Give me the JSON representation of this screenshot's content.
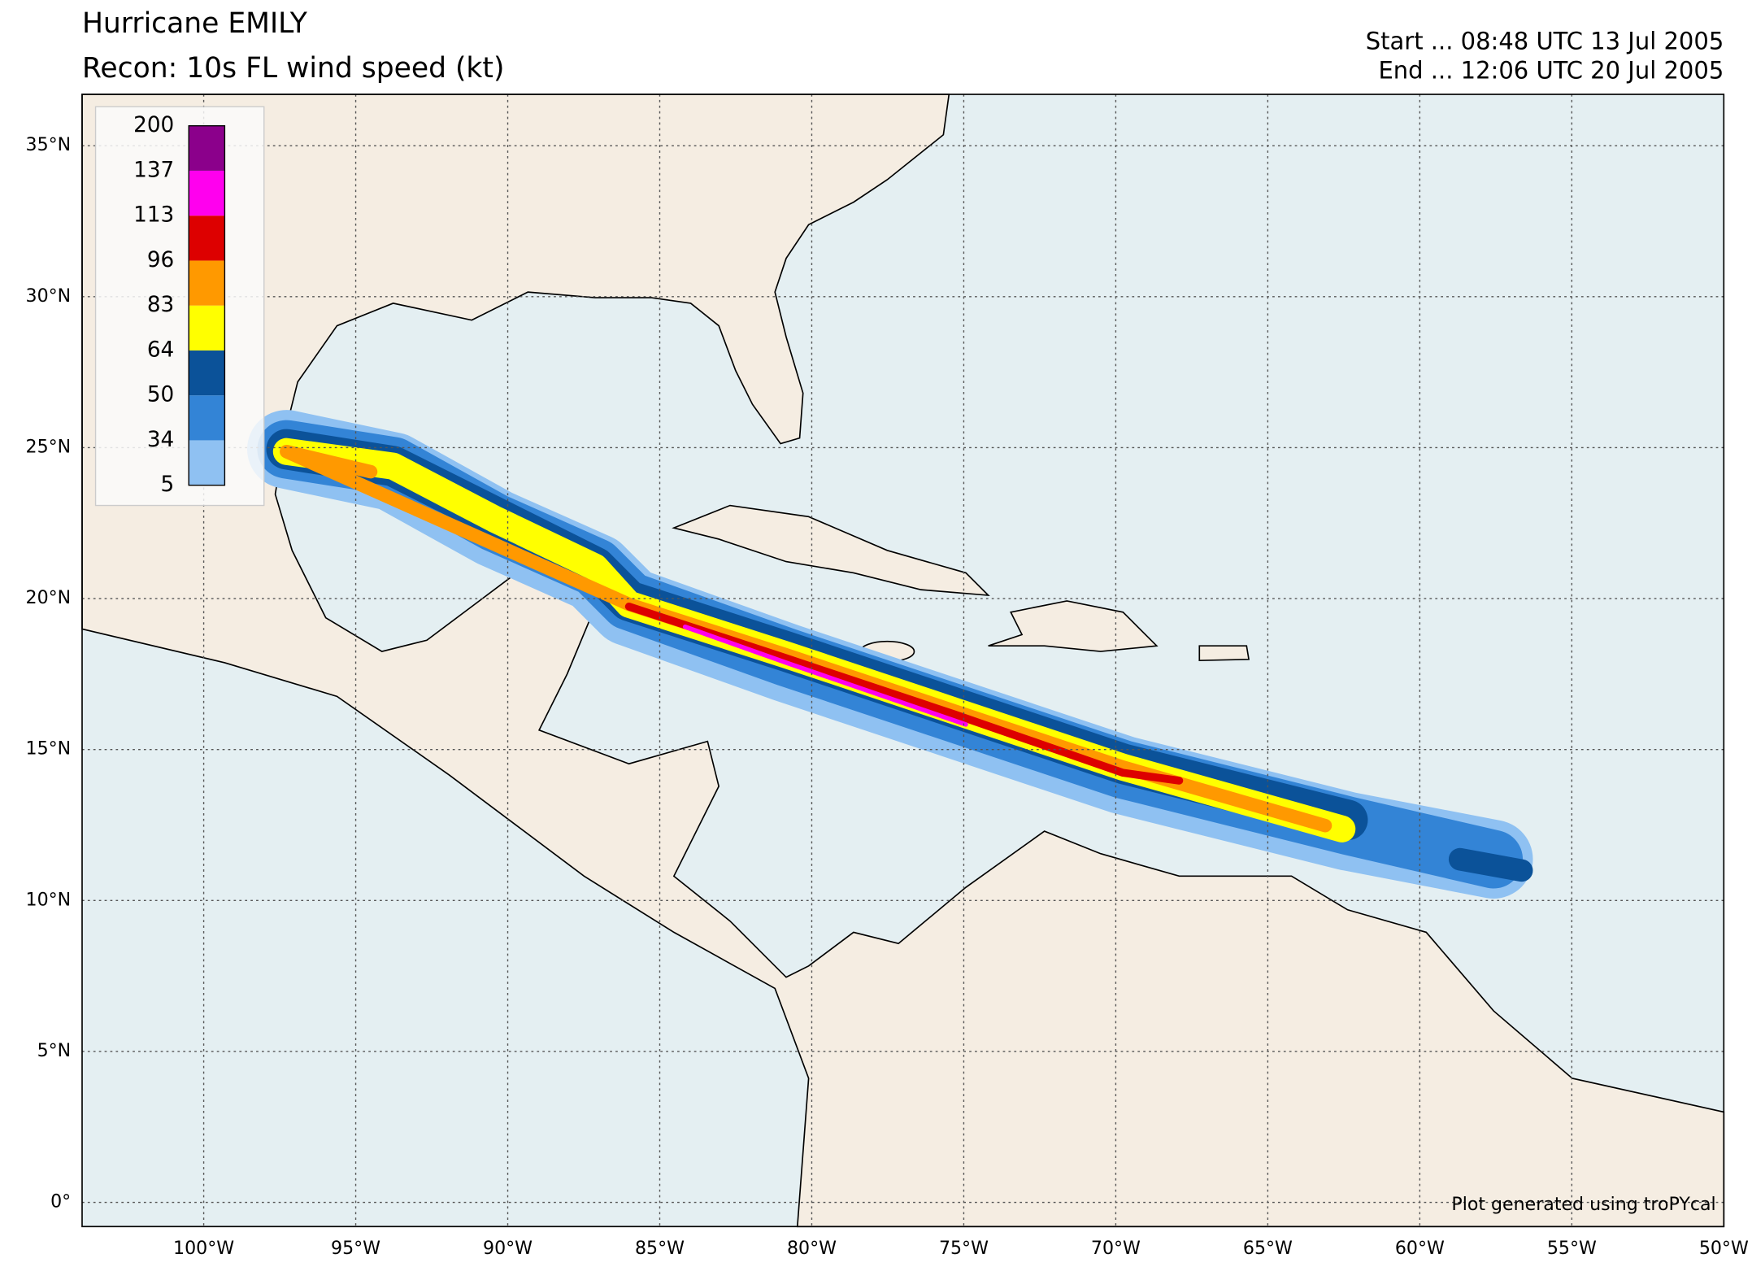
{
  "map": {
    "title": "Hurricane EMILY",
    "subtitle": "Recon: 10s FL wind speed (kt)",
    "start": "Start ... 08:48 UTC 13 Jul 2005",
    "end": "End ... 12:06 UTC 20 Jul 2005",
    "credit": "Plot generated using troPYcal",
    "xlim": [
      -104,
      -50
    ],
    "ylim": [
      -0.8,
      36.7
    ],
    "xticks": [
      {
        "value": -100,
        "label": "100°W"
      },
      {
        "value": -95,
        "label": "95°W"
      },
      {
        "value": -90,
        "label": "90°W"
      },
      {
        "value": -85,
        "label": "85°W"
      },
      {
        "value": -80,
        "label": "80°W"
      },
      {
        "value": -75,
        "label": "75°W"
      },
      {
        "value": -70,
        "label": "70°W"
      },
      {
        "value": -65,
        "label": "65°W"
      },
      {
        "value": -60,
        "label": "60°W"
      },
      {
        "value": -55,
        "label": "55°W"
      },
      {
        "value": -50,
        "label": "50°W"
      }
    ],
    "yticks": [
      {
        "value": 0,
        "label": "0°"
      },
      {
        "value": 5,
        "label": "5°N"
      },
      {
        "value": 10,
        "label": "10°N"
      },
      {
        "value": 15,
        "label": "15°N"
      },
      {
        "value": 20,
        "label": "20°N"
      },
      {
        "value": 25,
        "label": "25°N"
      },
      {
        "value": 30,
        "label": "30°N"
      },
      {
        "value": 35,
        "label": "35°N"
      }
    ],
    "colorbar": {
      "levels": [
        5,
        34,
        50,
        64,
        83,
        96,
        113,
        137,
        200
      ],
      "colors": [
        "#8fc1f2",
        "#3384d6",
        "#0b5299",
        "#ffff00",
        "#ff9900",
        "#dd0000",
        "#ff00ee",
        "#8b008b"
      ]
    }
  }
}
